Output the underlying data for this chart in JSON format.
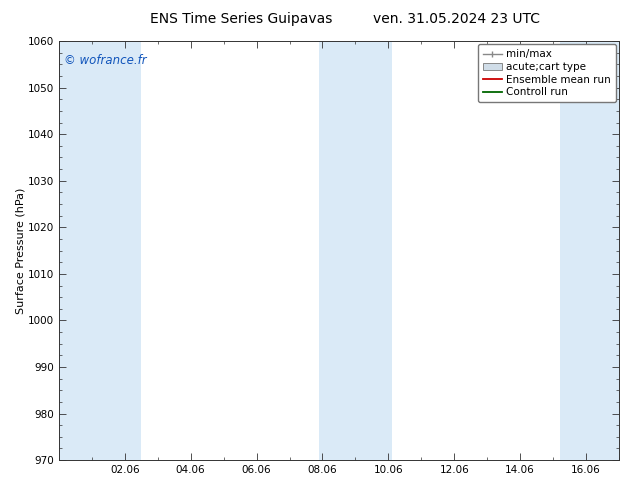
{
  "title_left": "ENS Time Series Guipavas",
  "title_right": "ven. 31.05.2024 23 UTC",
  "ylabel": "Surface Pressure (hPa)",
  "watermark": "© wofrance.fr",
  "ylim": [
    970,
    1060
  ],
  "yticks": [
    970,
    980,
    990,
    1000,
    1010,
    1020,
    1030,
    1040,
    1050,
    1060
  ],
  "xtick_labels": [
    "02.06",
    "04.06",
    "06.06",
    "08.06",
    "10.06",
    "12.06",
    "14.06",
    "16.06"
  ],
  "xtick_positions": [
    2,
    4,
    6,
    8,
    10,
    12,
    14,
    16
  ],
  "xlim": [
    0,
    17
  ],
  "bg_color": "#ffffff",
  "plot_bg_color": "#ffffff",
  "shaded_bands": [
    {
      "x_start": 0.0,
      "x_end": 2.5,
      "color": "#daeaf7"
    },
    {
      "x_start": 7.9,
      "x_end": 10.1,
      "color": "#daeaf7"
    },
    {
      "x_start": 15.2,
      "x_end": 17.0,
      "color": "#daeaf7"
    }
  ],
  "legend_entries": [
    {
      "label": "min/max",
      "color": "#aaaaaa",
      "type": "hline"
    },
    {
      "label": "acute;cart type",
      "color": "#cccccc",
      "type": "fill"
    },
    {
      "label": "Ensemble mean run",
      "color": "#cc0000",
      "type": "line"
    },
    {
      "label": "Controll run",
      "color": "#006600",
      "type": "line"
    }
  ],
  "border_color": "#555555",
  "font_size_title": 10,
  "font_size_axis": 8,
  "font_size_ticks": 7.5,
  "font_size_watermark": 8.5,
  "font_size_legend": 7.5,
  "dpi": 100,
  "fig_width": 6.34,
  "fig_height": 4.9
}
